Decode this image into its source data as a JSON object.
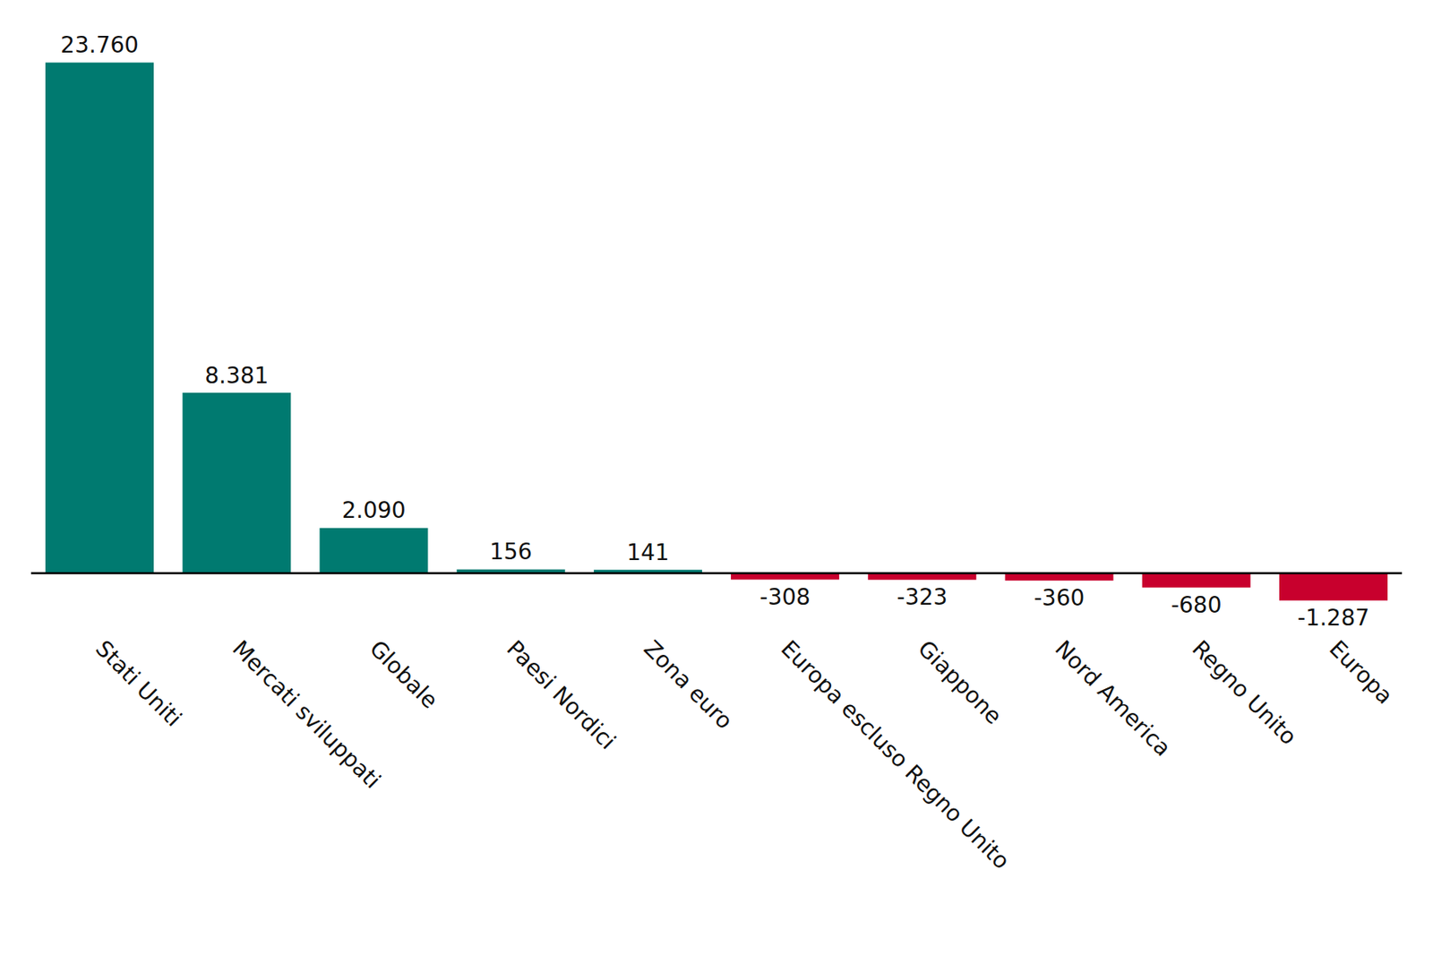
{
  "chart_data": {
    "type": "bar",
    "categories": [
      "Stati Uniti",
      "Mercati sviluppati",
      "Globale",
      "Paesi Nordici",
      "Zona euro",
      "Europa escluso Regno Unito",
      "Giappone",
      "Nord America",
      "Regno Unito",
      "Europa"
    ],
    "values": [
      23760,
      8381,
      2090,
      156,
      141,
      -308,
      -323,
      -360,
      -680,
      -1287
    ],
    "value_labels": [
      "23.760",
      "8.381",
      "2.090",
      "156",
      "141",
      "-308",
      "-323",
      "-360",
      "-680",
      "-1.287"
    ],
    "colors": [
      "#007a70",
      "#007a70",
      "#007a70",
      "#007a70",
      "#007a70",
      "#c8002d",
      "#c8002d",
      "#c8002d",
      "#c8002d",
      "#c8002d"
    ],
    "ylim": [
      -2000,
      25000
    ],
    "grid": false,
    "data_labels": true,
    "tick_labels": "x"
  }
}
